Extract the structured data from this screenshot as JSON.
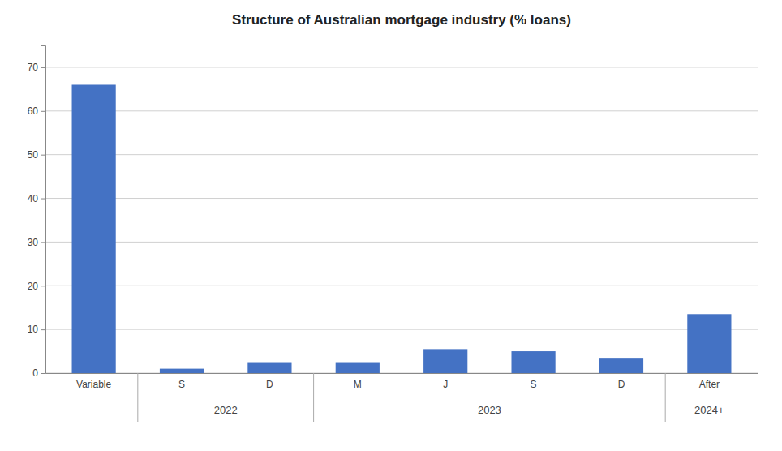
{
  "chart_data": {
    "type": "bar",
    "title": "Structure of Australian mortgage industry (% loans)",
    "categories": [
      "Variable",
      "S",
      "D",
      "M",
      "J",
      "S",
      "D",
      "After"
    ],
    "values": [
      66,
      1,
      2.5,
      2.5,
      5.5,
      5,
      3.5,
      13.5
    ],
    "groups": [
      null,
      "2022",
      "2022",
      "2023",
      "2023",
      "2023",
      "2023",
      "2024+"
    ],
    "color": "#4472C4",
    "ylim": [
      0,
      75
    ],
    "yticks": [
      0,
      10,
      20,
      30,
      40,
      50,
      60,
      70
    ],
    "grid": true
  }
}
